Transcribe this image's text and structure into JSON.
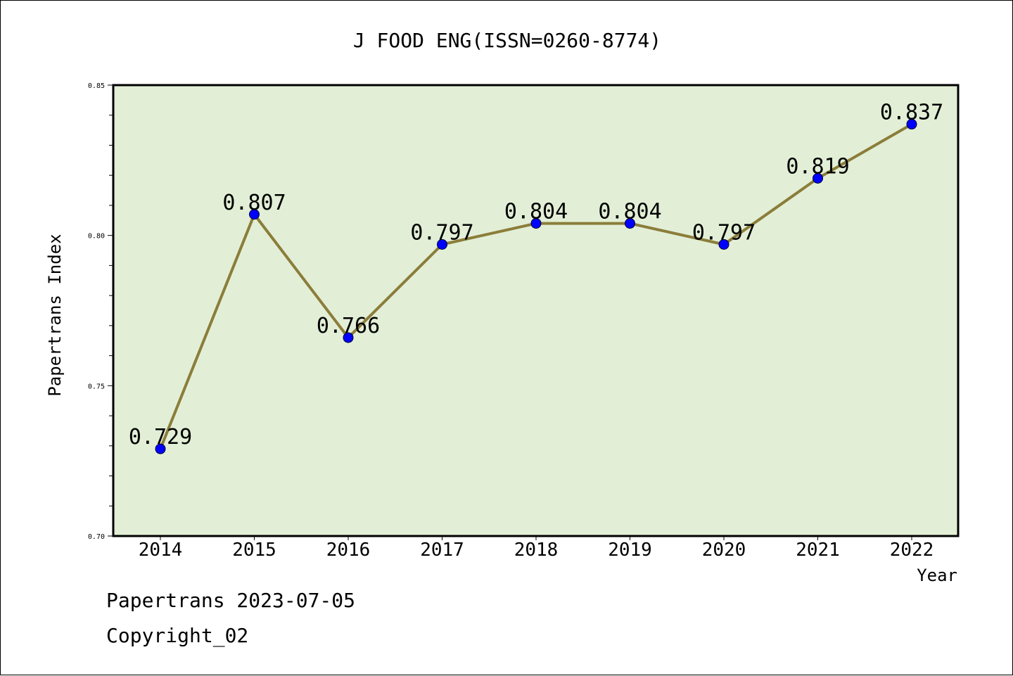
{
  "chart_data": {
    "type": "line",
    "title": "J FOOD ENG(ISSN=0260-8774)",
    "xlabel": "Year",
    "ylabel": "Papertrans Index",
    "x": [
      "2014",
      "2015",
      "2016",
      "2017",
      "2018",
      "2019",
      "2020",
      "2021",
      "2022"
    ],
    "series": [
      {
        "values": [
          0.729,
          0.807,
          0.766,
          0.797,
          0.804,
          0.804,
          0.797,
          0.819,
          0.837
        ],
        "labels": [
          "0.729",
          "0.807",
          "0.766",
          "0.797",
          "0.804",
          "0.804",
          "0.797",
          "0.819",
          "0.837"
        ]
      }
    ],
    "ylim": [
      0.7,
      0.85
    ],
    "yticks": [
      "0.70",
      "0.75",
      "0.80",
      "0.85"
    ],
    "grid": false,
    "legend": "none",
    "colors": {
      "plot_background": "#e2efd6",
      "line": "#8b7d3a",
      "marker": "#0000ff"
    }
  },
  "footer": {
    "line1": "Papertrans 2023-07-05",
    "line2": "Copyright_02"
  }
}
